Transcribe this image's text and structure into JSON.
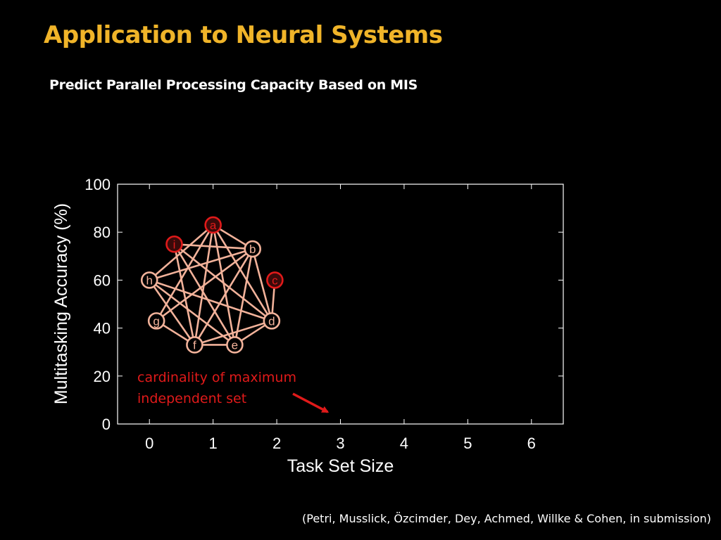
{
  "slide": {
    "title": "Application to Neural Systems",
    "subtitle": "Predict Parallel Processing Capacity Based on MIS",
    "citation": "(Petri, Musslick, Özcimder, Dey, Achmed, Willke & Cohen, in submission)"
  },
  "colors": {
    "background": "#000000",
    "title": "#f0b429",
    "text": "#ffffff",
    "accent_red": "#e01a1a",
    "graph_edge": "#f2b29a",
    "axis": "#ffffff"
  },
  "chart_data": {
    "type": "scatter",
    "xlabel": "Task Set Size",
    "ylabel": "Multitasking Accuracy (%)",
    "xlim": [
      -0.5,
      6.5
    ],
    "ylim": [
      0,
      100
    ],
    "xticks": [
      0,
      1,
      2,
      3,
      4,
      5,
      6
    ],
    "yticks": [
      0,
      20,
      40,
      60,
      80,
      100
    ],
    "grid": false,
    "series": [
      {
        "x": [],
        "y": []
      }
    ],
    "annotation": {
      "text_lines": [
        "cardinality of maximum",
        "independent set"
      ],
      "arrow_target": {
        "x": 2.8,
        "y": 5
      }
    },
    "inset_graph": {
      "nodes": [
        {
          "id": "a",
          "label": "a",
          "x": 1.0,
          "y": 83,
          "in_mis": true
        },
        {
          "id": "b",
          "label": "b",
          "x": 1.62,
          "y": 73,
          "in_mis": false
        },
        {
          "id": "c",
          "label": "c",
          "x": 1.97,
          "y": 60,
          "in_mis": true
        },
        {
          "id": "d",
          "label": "d",
          "x": 1.92,
          "y": 43,
          "in_mis": false
        },
        {
          "id": "e",
          "label": "e",
          "x": 1.34,
          "y": 33,
          "in_mis": false
        },
        {
          "id": "f",
          "label": "f",
          "x": 0.71,
          "y": 33,
          "in_mis": false
        },
        {
          "id": "g",
          "label": "g",
          "x": 0.11,
          "y": 43,
          "in_mis": false
        },
        {
          "id": "h",
          "label": "h",
          "x": 0.0,
          "y": 60,
          "in_mis": false
        },
        {
          "id": "i",
          "label": "i",
          "x": 0.39,
          "y": 75,
          "in_mis": true
        }
      ],
      "edges": [
        [
          "a",
          "b"
        ],
        [
          "a",
          "f"
        ],
        [
          "a",
          "e"
        ],
        [
          "a",
          "g"
        ],
        [
          "a",
          "h"
        ],
        [
          "a",
          "d"
        ],
        [
          "i",
          "f"
        ],
        [
          "i",
          "e"
        ],
        [
          "i",
          "d"
        ],
        [
          "i",
          "b"
        ],
        [
          "h",
          "b"
        ],
        [
          "h",
          "d"
        ],
        [
          "h",
          "e"
        ],
        [
          "h",
          "f"
        ],
        [
          "g",
          "f"
        ],
        [
          "g",
          "b"
        ],
        [
          "f",
          "e"
        ],
        [
          "f",
          "d"
        ],
        [
          "f",
          "b"
        ],
        [
          "e",
          "d"
        ],
        [
          "e",
          "b"
        ],
        [
          "d",
          "b"
        ],
        [
          "d",
          "c"
        ]
      ]
    }
  }
}
